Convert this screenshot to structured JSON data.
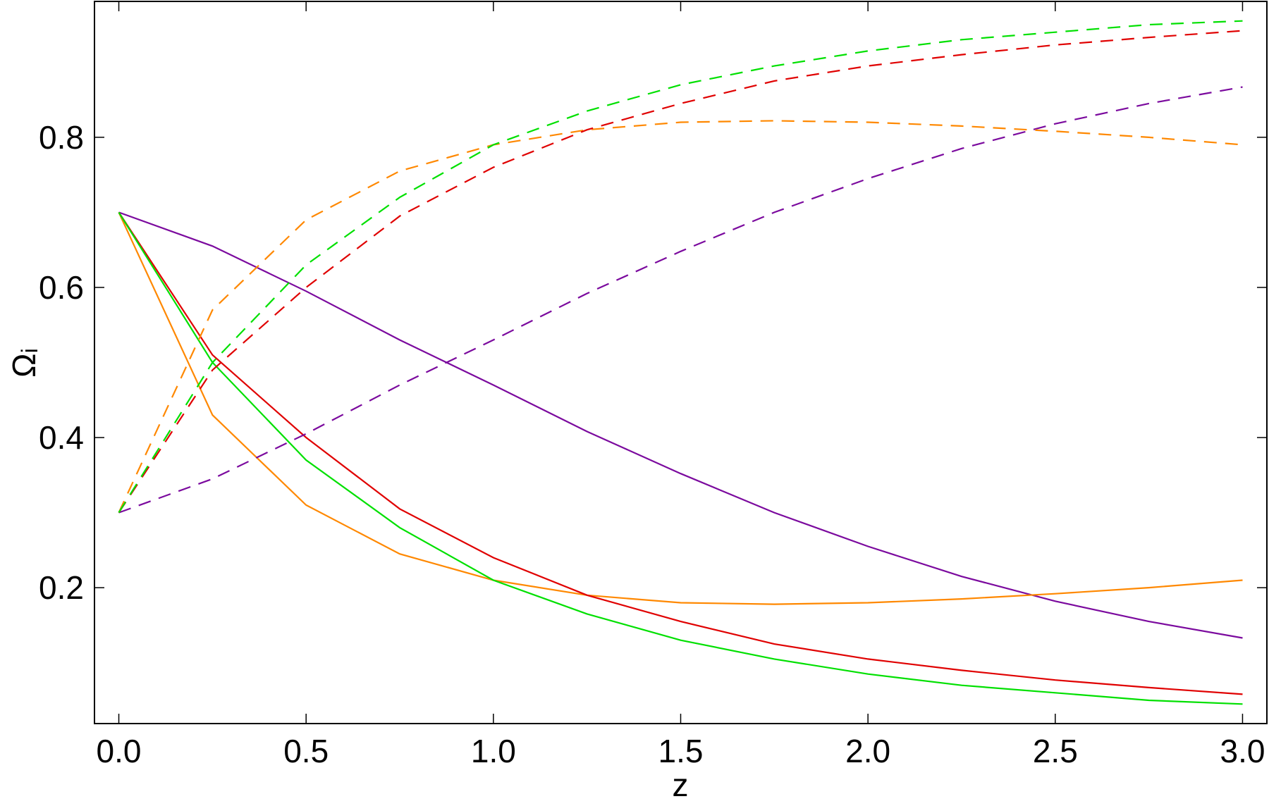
{
  "chart_data": {
    "type": "line",
    "xlabel": "z",
    "ylabel": "Ωᵢ",
    "x": [
      0,
      0.25,
      0.5,
      0.75,
      1.0,
      1.25,
      1.5,
      1.75,
      2.0,
      2.25,
      2.5,
      2.75,
      3.0
    ],
    "series": [
      {
        "color": "#7b0a9e",
        "style": "solid",
        "values": [
          0.7,
          0.655,
          0.595,
          0.53,
          0.47,
          0.408,
          0.352,
          0.3,
          0.255,
          0.215,
          0.182,
          0.155,
          0.133
        ]
      },
      {
        "color": "#ff8800",
        "style": "solid",
        "values": [
          0.7,
          0.43,
          0.31,
          0.245,
          0.21,
          0.19,
          0.18,
          0.178,
          0.18,
          0.185,
          0.192,
          0.2,
          0.21
        ]
      },
      {
        "color": "#e00000",
        "style": "solid",
        "values": [
          0.7,
          0.51,
          0.4,
          0.305,
          0.24,
          0.19,
          0.155,
          0.125,
          0.105,
          0.09,
          0.077,
          0.067,
          0.058
        ]
      },
      {
        "color": "#00e000",
        "style": "solid",
        "values": [
          0.7,
          0.5,
          0.37,
          0.28,
          0.21,
          0.165,
          0.13,
          0.105,
          0.085,
          0.07,
          0.06,
          0.05,
          0.045
        ]
      },
      {
        "color": "#7b0a9e",
        "style": "dashed",
        "values": [
          0.3,
          0.345,
          0.405,
          0.47,
          0.53,
          0.592,
          0.648,
          0.7,
          0.745,
          0.785,
          0.818,
          0.845,
          0.867
        ]
      },
      {
        "color": "#ff8800",
        "style": "dashed",
        "values": [
          0.3,
          0.57,
          0.69,
          0.755,
          0.79,
          0.81,
          0.82,
          0.822,
          0.82,
          0.815,
          0.808,
          0.8,
          0.79
        ]
      },
      {
        "color": "#e00000",
        "style": "dashed",
        "values": [
          0.3,
          0.49,
          0.6,
          0.695,
          0.76,
          0.81,
          0.845,
          0.875,
          0.895,
          0.91,
          0.923,
          0.933,
          0.942
        ]
      },
      {
        "color": "#00e000",
        "style": "dashed",
        "values": [
          0.3,
          0.5,
          0.63,
          0.72,
          0.79,
          0.835,
          0.87,
          0.895,
          0.915,
          0.93,
          0.94,
          0.95,
          0.955
        ]
      }
    ],
    "xlim": [
      -0.065,
      3.065
    ],
    "ylim": [
      0.019,
      0.981
    ],
    "xticks": [
      {
        "value": 0,
        "label": "0.0"
      },
      0.5,
      {
        "value": 1,
        "label": "1.0"
      },
      1.5,
      {
        "value": 2,
        "label": "2.0"
      },
      2.5,
      {
        "value": 3,
        "label": "3.0"
      }
    ],
    "yticks": [
      0.2,
      0.4,
      0.6,
      0.8
    ]
  }
}
